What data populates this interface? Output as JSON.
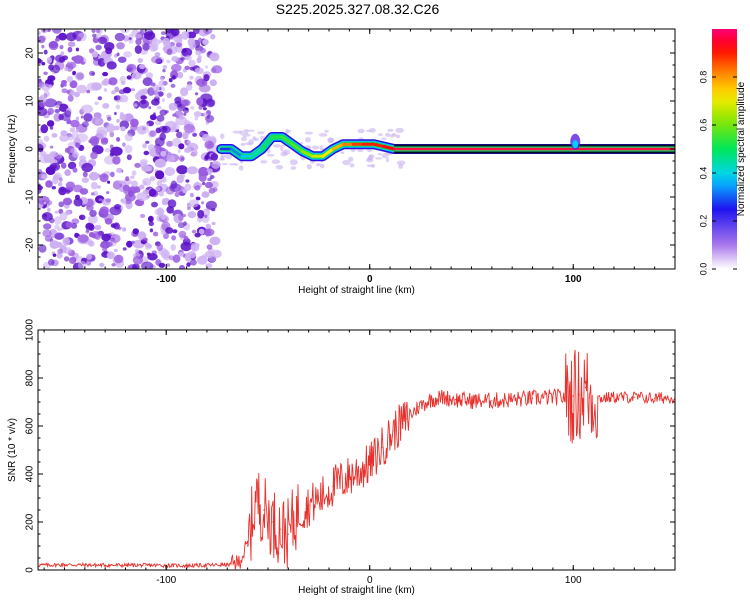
{
  "title": "S225.2025.327.08.32.C26",
  "chart_data": [
    {
      "type": "heatmap",
      "xlabel": "Height of straight line (km)",
      "ylabel": "Frequency (Hz)",
      "xlim": [
        -163,
        150
      ],
      "ylim": [
        -25,
        25
      ],
      "xticks": [
        -100,
        0,
        100
      ],
      "yticks": [
        -20,
        -10,
        0,
        10,
        20
      ],
      "noise_region_x": [
        -163,
        -73
      ],
      "ridge": {
        "description": "Dominant frequency of normalized spectral amplitude",
        "x": [
          -73,
          -68,
          -63,
          -58,
          -53,
          -48,
          -43,
          -38,
          -33,
          -28,
          -23,
          -18,
          -13,
          -8,
          -3,
          2,
          7,
          12,
          20,
          40,
          60,
          80,
          95,
          100,
          105,
          120,
          150
        ],
        "y": [
          0,
          0,
          -1.5,
          -1.5,
          0,
          2.5,
          2.5,
          1,
          -0.5,
          -1.5,
          -1.5,
          0,
          1,
          1,
          1,
          1,
          0.5,
          0,
          0,
          0,
          0,
          0,
          0,
          0,
          0,
          0,
          0
        ],
        "amplitude": [
          0.25,
          0.3,
          0.35,
          0.4,
          0.45,
          0.5,
          0.55,
          0.55,
          0.6,
          0.65,
          0.7,
          0.75,
          0.8,
          0.85,
          0.9,
          0.9,
          0.9,
          0.95,
          0.95,
          0.95,
          0.95,
          0.95,
          0.95,
          0.9,
          0.95,
          0.95,
          0.95
        ]
      },
      "colorbar": {
        "label": "Normalized spectral amplitude",
        "range": [
          0,
          1
        ],
        "ticks": [
          "0.0",
          "0.2",
          "0.4",
          "0.6",
          "0.8"
        ]
      }
    },
    {
      "type": "line",
      "xlabel": "Height of straight line (km)",
      "ylabel": "SNR (10 * v/v)",
      "xlim": [
        -163,
        150
      ],
      "ylim": [
        0,
        1000
      ],
      "xticks": [
        -100,
        0,
        100
      ],
      "yticks": [
        0,
        200,
        400,
        600,
        800,
        1000
      ],
      "series": [
        {
          "name": "SNR",
          "color": "#e8312c",
          "x": [
            -163,
            -150,
            -130,
            -110,
            -90,
            -70,
            -65,
            -60,
            -56,
            -52,
            -48,
            -44,
            -40,
            -36,
            -30,
            -24,
            -18,
            -12,
            -6,
            0,
            6,
            12,
            18,
            24,
            30,
            36,
            42,
            50,
            60,
            70,
            80,
            90,
            95,
            100,
            103,
            106,
            108,
            112,
            120,
            130,
            140,
            150
          ],
          "y": [
            20,
            22,
            20,
            20,
            18,
            22,
            25,
            100,
            300,
            250,
            200,
            170,
            150,
            230,
            270,
            300,
            350,
            380,
            410,
            440,
            510,
            580,
            630,
            680,
            710,
            720,
            710,
            705,
            705,
            710,
            715,
            720,
            720,
            725,
            730,
            760,
            720,
            715,
            720,
            720,
            715,
            720
          ]
        }
      ]
    }
  ]
}
